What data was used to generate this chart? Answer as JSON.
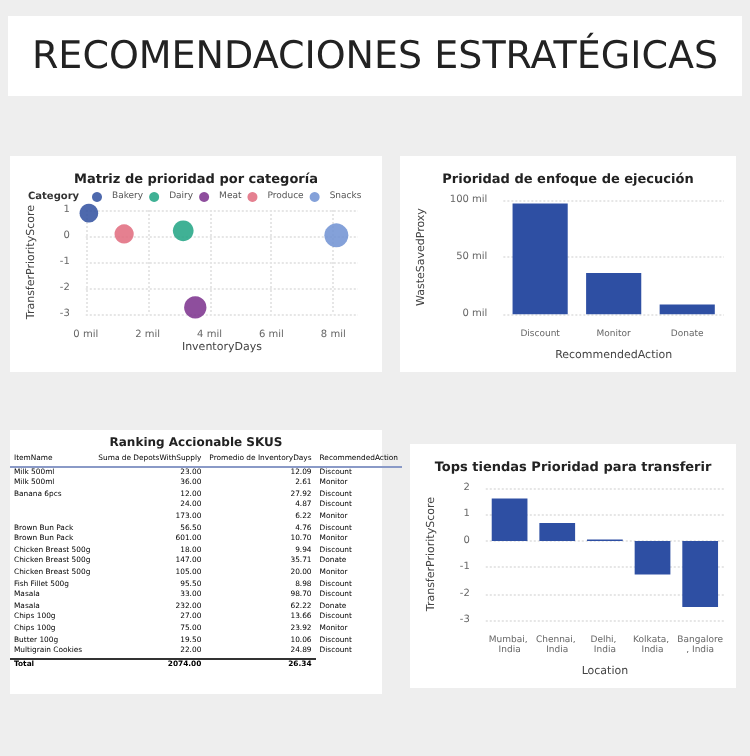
{
  "chart_data": [
    {
      "type": "other",
      "title": "RECOMENDACIONES ESTRATÉGICAS"
    },
    {
      "type": "bubble",
      "title": "Matriz de prioridad por categoría",
      "xlabel": "InventoryDays",
      "ylabel": "TransferPriorityScore",
      "legend_title": "Category",
      "legend": "top left",
      "grid": true,
      "xlim": [
        0,
        8.8
      ],
      "xticks": [
        {
          "value": 0,
          "label": "0 mil"
        },
        {
          "value": 2,
          "label": "2 mil"
        },
        {
          "value": 4,
          "label": "4 mil"
        },
        {
          "value": 6,
          "label": "6 mil"
        },
        {
          "value": 8,
          "label": "8 mil"
        }
      ],
      "ylim": [
        -3,
        1
      ],
      "yticks": [
        -3,
        -2,
        -1,
        0,
        1
      ],
      "series": [
        {
          "name": "Bakery",
          "color": "#2f4f9f",
          "x": [
            0.1
          ],
          "values": [
            0.88
          ],
          "sizes": [
            0.6
          ]
        },
        {
          "name": "Dairy",
          "color": "#1fa383",
          "x": [
            3.15
          ],
          "values": [
            0.2
          ],
          "sizes": [
            0.75
          ]
        },
        {
          "name": "Meat",
          "color": "#7a2f8c",
          "x": [
            3.54
          ],
          "values": [
            -2.74
          ],
          "sizes": [
            0.87
          ]
        },
        {
          "name": "Produce",
          "color": "#e06a7c",
          "x": [
            1.24
          ],
          "values": [
            0.08
          ],
          "sizes": [
            0.64
          ]
        },
        {
          "name": "Snacks",
          "color": "#6f90d2",
          "x": [
            8.1
          ],
          "values": [
            0.03
          ],
          "sizes": [
            1
          ]
        }
      ]
    },
    {
      "type": "bar",
      "title": "Prioridad de enfoque de ejecución",
      "xlabel": "RecommendedAction",
      "ylabel": "WasteSavedProxy",
      "grid": "y",
      "color": "#2e4fa3",
      "categories": [
        "Discount",
        "Monitor",
        "Donate"
      ],
      "values": [
        97,
        36,
        8.6
      ],
      "ylim": [
        0,
        100
      ],
      "yticks": [
        {
          "value": 0,
          "label": "0 mil"
        },
        {
          "value": 50,
          "label": "50 mil"
        },
        {
          "value": 100,
          "label": "100 mil"
        }
      ]
    },
    {
      "type": "other",
      "title": "Ranking Accionable SKUS",
      "categories": [
        "ItemName",
        "Suma de DepotsWithSupply",
        "Promedio de InventoryDays",
        "RecommendedAction"
      ],
      "annotations": [
        "Milk 500ml",
        "23.00",
        "12.09",
        "Discount",
        "Milk 500ml",
        "36.00",
        "2.61",
        "Monitor",
        "Banana 6pcs",
        "12.00",
        "27.92",
        "Discount",
        null,
        "24.00",
        "4.87",
        "Discount",
        null,
        "173.00",
        "6.22",
        "Monitor",
        "Brown Bun Pack",
        "56.50",
        "4.76",
        "Discount",
        "Brown Bun Pack",
        "601.00",
        "10.70",
        "Monitor",
        "Chicken Breast 500g",
        "18.00",
        "9.94",
        "Discount",
        "Chicken Breast 500g",
        "147.00",
        "35.71",
        "Donate",
        "Chicken Breast 500g",
        "105.00",
        "20.00",
        "Monitor",
        "Fish Fillet 500g",
        "95.50",
        "8.98",
        "Discount",
        "Masala",
        "33.00",
        "98.70",
        "Discount",
        "Masala",
        "232.00",
        "62.22",
        "Donate",
        "Chips 100g",
        "27.00",
        "13.66",
        "Discount",
        "Chips 100g",
        "75.00",
        "23.92",
        "Monitor",
        "Butter 100g",
        "19.50",
        "10.06",
        "Discount",
        "Multigrain Cookies",
        "22.00",
        "24.89",
        "Discount",
        "Total",
        "2074.00",
        "26.34"
      ]
    },
    {
      "type": "bar",
      "title": "Tops tiendas Prioridad para transferir",
      "xlabel": "Location",
      "ylabel": "TransferPriorityScore",
      "grid": "y",
      "color": "#2e4fa3",
      "categories": [
        "Mumbai, India",
        "Chennai, India",
        "Delhi, India",
        "Kolkata, India",
        "Bangalore, India"
      ],
      "values": [
        1.6,
        0.68,
        0.05,
        -1.27,
        -2.5
      ],
      "ylim": [
        -3,
        2
      ],
      "yticks": [
        -3,
        -2,
        -1,
        0,
        1,
        2
      ]
    }
  ]
}
